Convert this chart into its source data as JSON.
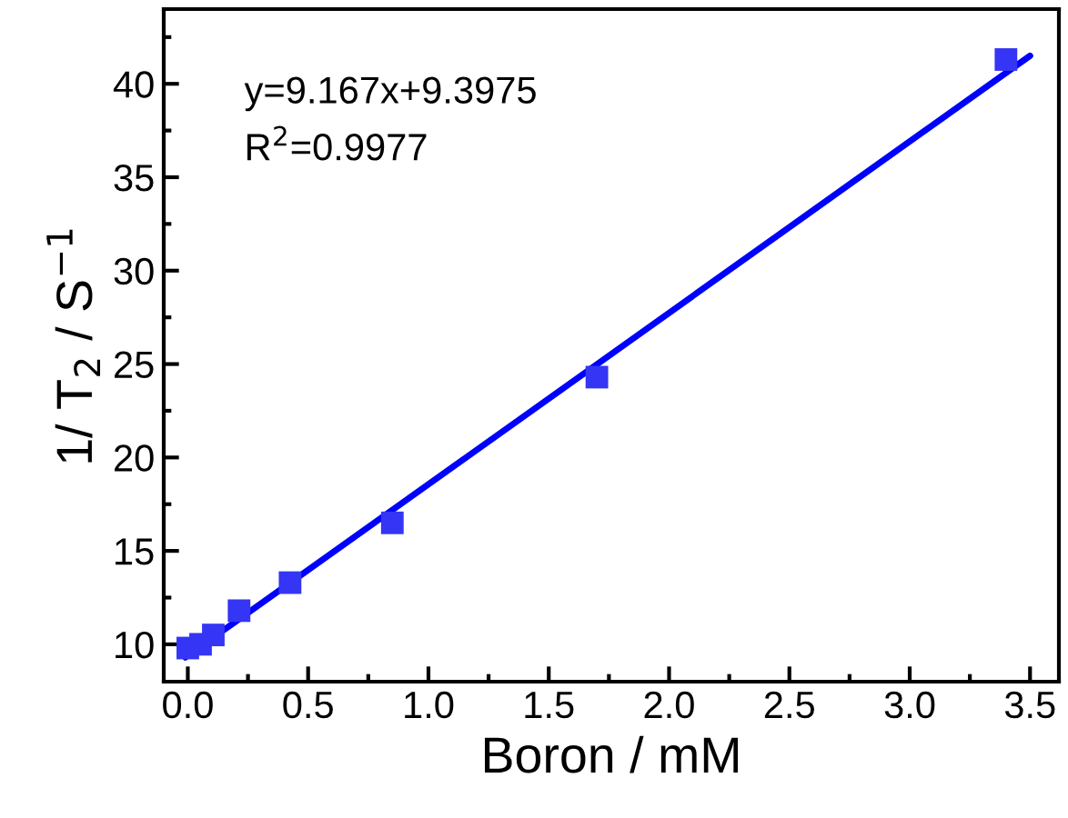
{
  "chart_data": {
    "type": "scatter",
    "xlabel": "Boron / mM",
    "ylabel": "1/ T$_{2}$ / S$^{−1}$",
    "annotations": [
      "y=9.167x+9.3975",
      "R$^{2}$=0.9977"
    ],
    "x": [
      0,
      0.053,
      0.106,
      0.213,
      0.425,
      0.85,
      1.7,
      3.4
    ],
    "series": [
      {
        "color": "#3535f5",
        "marker": "square",
        "values": [
          9.8,
          10.0,
          10.5,
          11.8,
          13.3,
          16.5,
          24.3,
          41.3
        ]
      },
      {
        "type": "line",
        "color": "#0000ff",
        "marker": "none",
        "line_style": "solid",
        "x": [
          -0.01,
          3.5
        ],
        "values": [
          9.3,
          41.5
        ]
      }
    ],
    "xlim": [
      -0.1,
      3.62
    ],
    "ylim": [
      8,
      44
    ],
    "xticks": [
      {
        "value": 0,
        "label": "0.0"
      },
      {
        "value": 0.5,
        "label": "0.5"
      },
      {
        "value": 1,
        "label": "1.0"
      },
      {
        "value": 1.5,
        "label": "1.5"
      },
      {
        "value": 2,
        "label": "2.0"
      },
      {
        "value": 2.5,
        "label": "2.5"
      },
      {
        "value": 3,
        "label": "3.0"
      },
      {
        "value": 3.5,
        "label": "3.5"
      }
    ],
    "yticks": [
      10,
      15,
      20,
      25,
      30,
      35,
      40
    ],
    "grid": false,
    "legend": false
  }
}
